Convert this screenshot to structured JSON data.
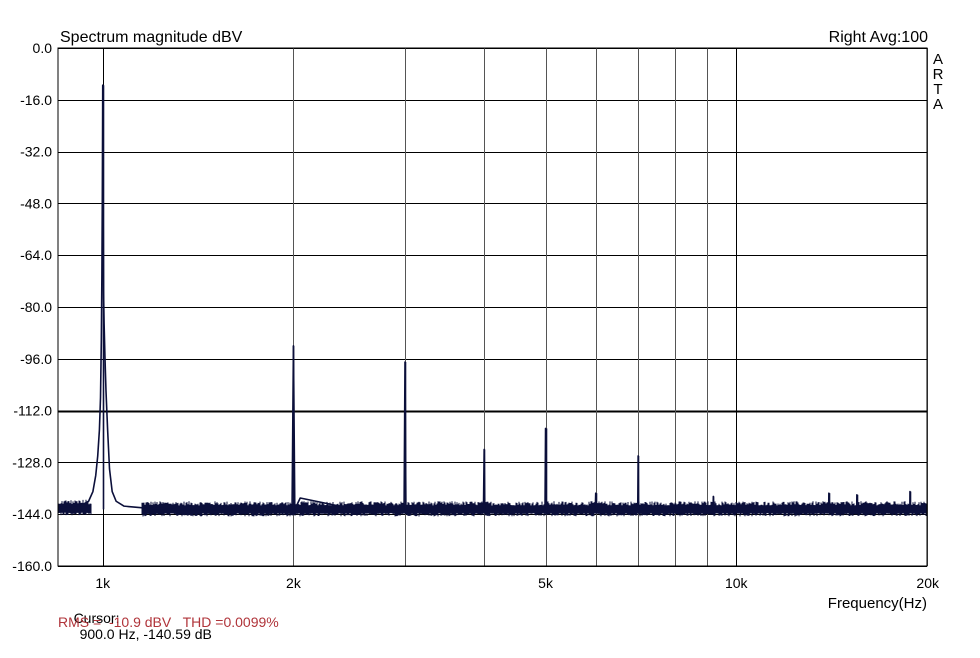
{
  "chart_data": {
    "type": "line",
    "title": "Spectrum magnitude dBV",
    "channel_label": "Right",
    "avg_label": "Avg:100",
    "watermark": "ARTA",
    "xlabel": "Frequency(Hz)",
    "ylabel": "",
    "x_scale": "log",
    "xlim": [
      850,
      20000
    ],
    "ylim": [
      -160,
      0
    ],
    "x_ticks": [
      {
        "value": 1000,
        "label": "1k"
      },
      {
        "value": 2000,
        "label": "2k"
      },
      {
        "value": 5000,
        "label": "5k"
      },
      {
        "value": 10000,
        "label": "10k"
      },
      {
        "value": 20000,
        "label": "20k"
      }
    ],
    "x_grid": [
      1000,
      2000,
      3000,
      4000,
      5000,
      6000,
      7000,
      8000,
      9000,
      10000,
      20000
    ],
    "y_ticks": [
      {
        "value": 0,
        "label": "0.0"
      },
      {
        "value": -16,
        "label": "-16.0"
      },
      {
        "value": -32,
        "label": "-32.0"
      },
      {
        "value": -48,
        "label": "-48.0"
      },
      {
        "value": -64,
        "label": "-64.0"
      },
      {
        "value": -80,
        "label": "-80.0"
      },
      {
        "value": -96,
        "label": "-96.0"
      },
      {
        "value": -112,
        "label": "-112.0"
      },
      {
        "value": -128,
        "label": "-128.0"
      },
      {
        "value": -144,
        "label": "-144.0"
      },
      {
        "value": -160,
        "label": "-160.0"
      }
    ],
    "grid": true,
    "highlight_line_y": -112,
    "noise_floor_db": -142.5,
    "peaks": [
      {
        "f": 1000,
        "db": -11.5
      },
      {
        "f": 2000,
        "db": -92
      },
      {
        "f": 3000,
        "db": -97
      },
      {
        "f": 4000,
        "db": -124
      },
      {
        "f": 5000,
        "db": -117.5
      },
      {
        "f": 6000,
        "db": -137.5
      },
      {
        "f": 7000,
        "db": -126
      },
      {
        "f": 9200,
        "db": -138.5
      },
      {
        "f": 14000,
        "db": -137.5
      },
      {
        "f": 15500,
        "db": -138
      },
      {
        "f": 18800,
        "db": -137
      }
    ],
    "series": [
      {
        "color": "#0b0f3a",
        "x": [
          855,
          900,
          930,
          950,
          965,
          975,
          982,
          988,
          992,
          995,
          997,
          998.5,
          999.5,
          1000,
          1000.5,
          1001.5,
          1003,
          1005,
          1008,
          1012,
          1018,
          1025,
          1035,
          1050,
          1080,
          1150,
          1300,
          1500,
          1800,
          1990,
          2000,
          2010,
          2050,
          2500,
          2990,
          3000,
          3010,
          3500,
          3990,
          4000,
          4010,
          4500,
          4990,
          5000,
          5010,
          5500,
          5990,
          6000,
          6010,
          6500,
          6990,
          7000,
          7010,
          8000,
          9190,
          9200,
          9210,
          11000,
          12500,
          13990,
          14000,
          14010,
          15490,
          15500,
          15510,
          17000,
          18790,
          18800,
          18810,
          20000
        ],
        "y": [
          -142,
          -141.5,
          -141,
          -140,
          -137,
          -132,
          -126,
          -118,
          -108,
          -90,
          -70,
          -47,
          -25,
          -11.5,
          -30,
          -50,
          -75,
          -85,
          -95,
          -106,
          -118,
          -130,
          -137,
          -140,
          -141.5,
          -142,
          -142.5,
          -142.5,
          -142.5,
          -142.5,
          -92,
          -142.5,
          -139,
          -142.5,
          -142.5,
          -97,
          -142.5,
          -142.5,
          -142.5,
          -124,
          -142.5,
          -142.5,
          -142.5,
          -117.5,
          -142.5,
          -142.5,
          -142.5,
          -137.5,
          -142.5,
          -142.5,
          -142.5,
          -126,
          -142.5,
          -142.5,
          -142.5,
          -138.5,
          -142.5,
          -142.5,
          -142.5,
          -142.5,
          -137.5,
          -142.5,
          -142.5,
          -138,
          -142.5,
          -142.5,
          -142.5,
          -137,
          -142.5,
          -142.5
        ]
      }
    ]
  },
  "readouts": {
    "cursor_label": "Cursor:",
    "cursor_value": "900.0 Hz, -140.59 dB",
    "rms_text": "RMS =  -10.9 dBV   THD =0.0099%"
  },
  "colors": {
    "grid": "#000000",
    "trace": "#0b0f3a",
    "rms_text": "#b0343a"
  }
}
